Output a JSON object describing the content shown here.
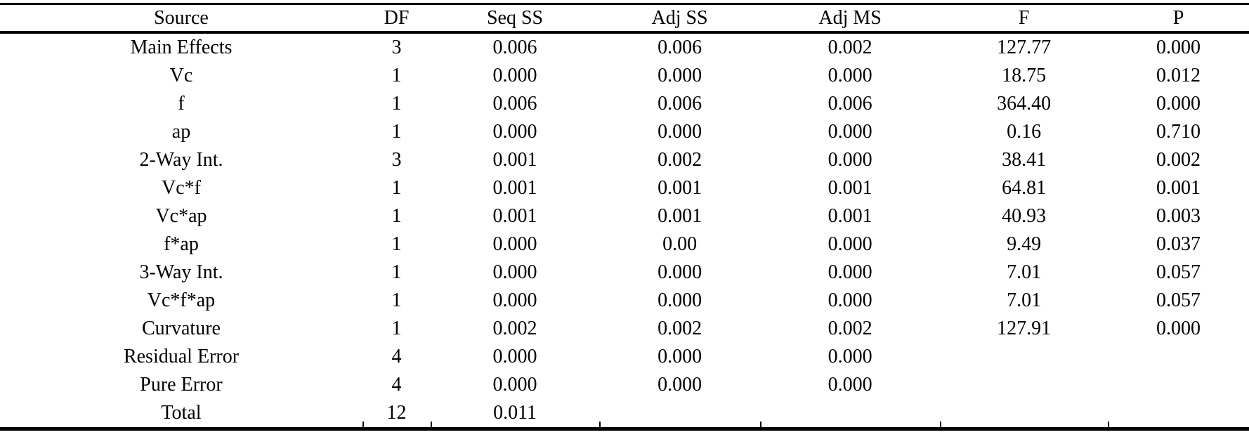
{
  "table": {
    "columns": [
      "Source",
      "DF",
      "Seq SS",
      "Adj SS",
      "Adj MS",
      "F",
      "P"
    ],
    "rows": [
      [
        "Main Effects",
        "3",
        "0.006",
        "0.006",
        "0.002",
        "127.77",
        "0.000"
      ],
      [
        "Vc",
        "1",
        "0.000",
        "0.000",
        "0.000",
        "18.75",
        "0.012"
      ],
      [
        "f",
        "1",
        "0.006",
        "0.006",
        "0.006",
        "364.40",
        "0.000"
      ],
      [
        "ap",
        "1",
        "0.000",
        "0.000",
        "0.000",
        "0.16",
        "0.710"
      ],
      [
        "2-Way Int.",
        "3",
        "0.001",
        "0.002",
        "0.000",
        "38.41",
        "0.002"
      ],
      [
        "Vc*f",
        "1",
        "0.001",
        "0.001",
        "0.001",
        "64.81",
        "0.001"
      ],
      [
        "Vc*ap",
        "1",
        "0.001",
        "0.001",
        "0.001",
        "40.93",
        "0.003"
      ],
      [
        "f*ap",
        "1",
        "0.000",
        "0.00",
        "0.000",
        "9.49",
        "0.037"
      ],
      [
        "3-Way Int.",
        "1",
        "0.000",
        "0.000",
        "0.000",
        "7.01",
        "0.057"
      ],
      [
        "Vc*f*ap",
        "1",
        "0.000",
        "0.000",
        "0.000",
        "7.01",
        "0.057"
      ],
      [
        "Curvature",
        "1",
        "0.002",
        "0.002",
        "0.002",
        "127.91",
        "0.000"
      ],
      [
        "Residual Error",
        "4",
        "0.000",
        "0.000",
        "0.000",
        "",
        ""
      ],
      [
        "Pure Error",
        "4",
        "0.000",
        "0.000",
        "0.000",
        "",
        ""
      ],
      [
        "Total",
        "12",
        "0.011",
        "",
        "",
        "",
        ""
      ]
    ]
  },
  "style": {
    "text_color": "#000000",
    "rule_color": "#000000",
    "background_color": "#ffffff"
  }
}
